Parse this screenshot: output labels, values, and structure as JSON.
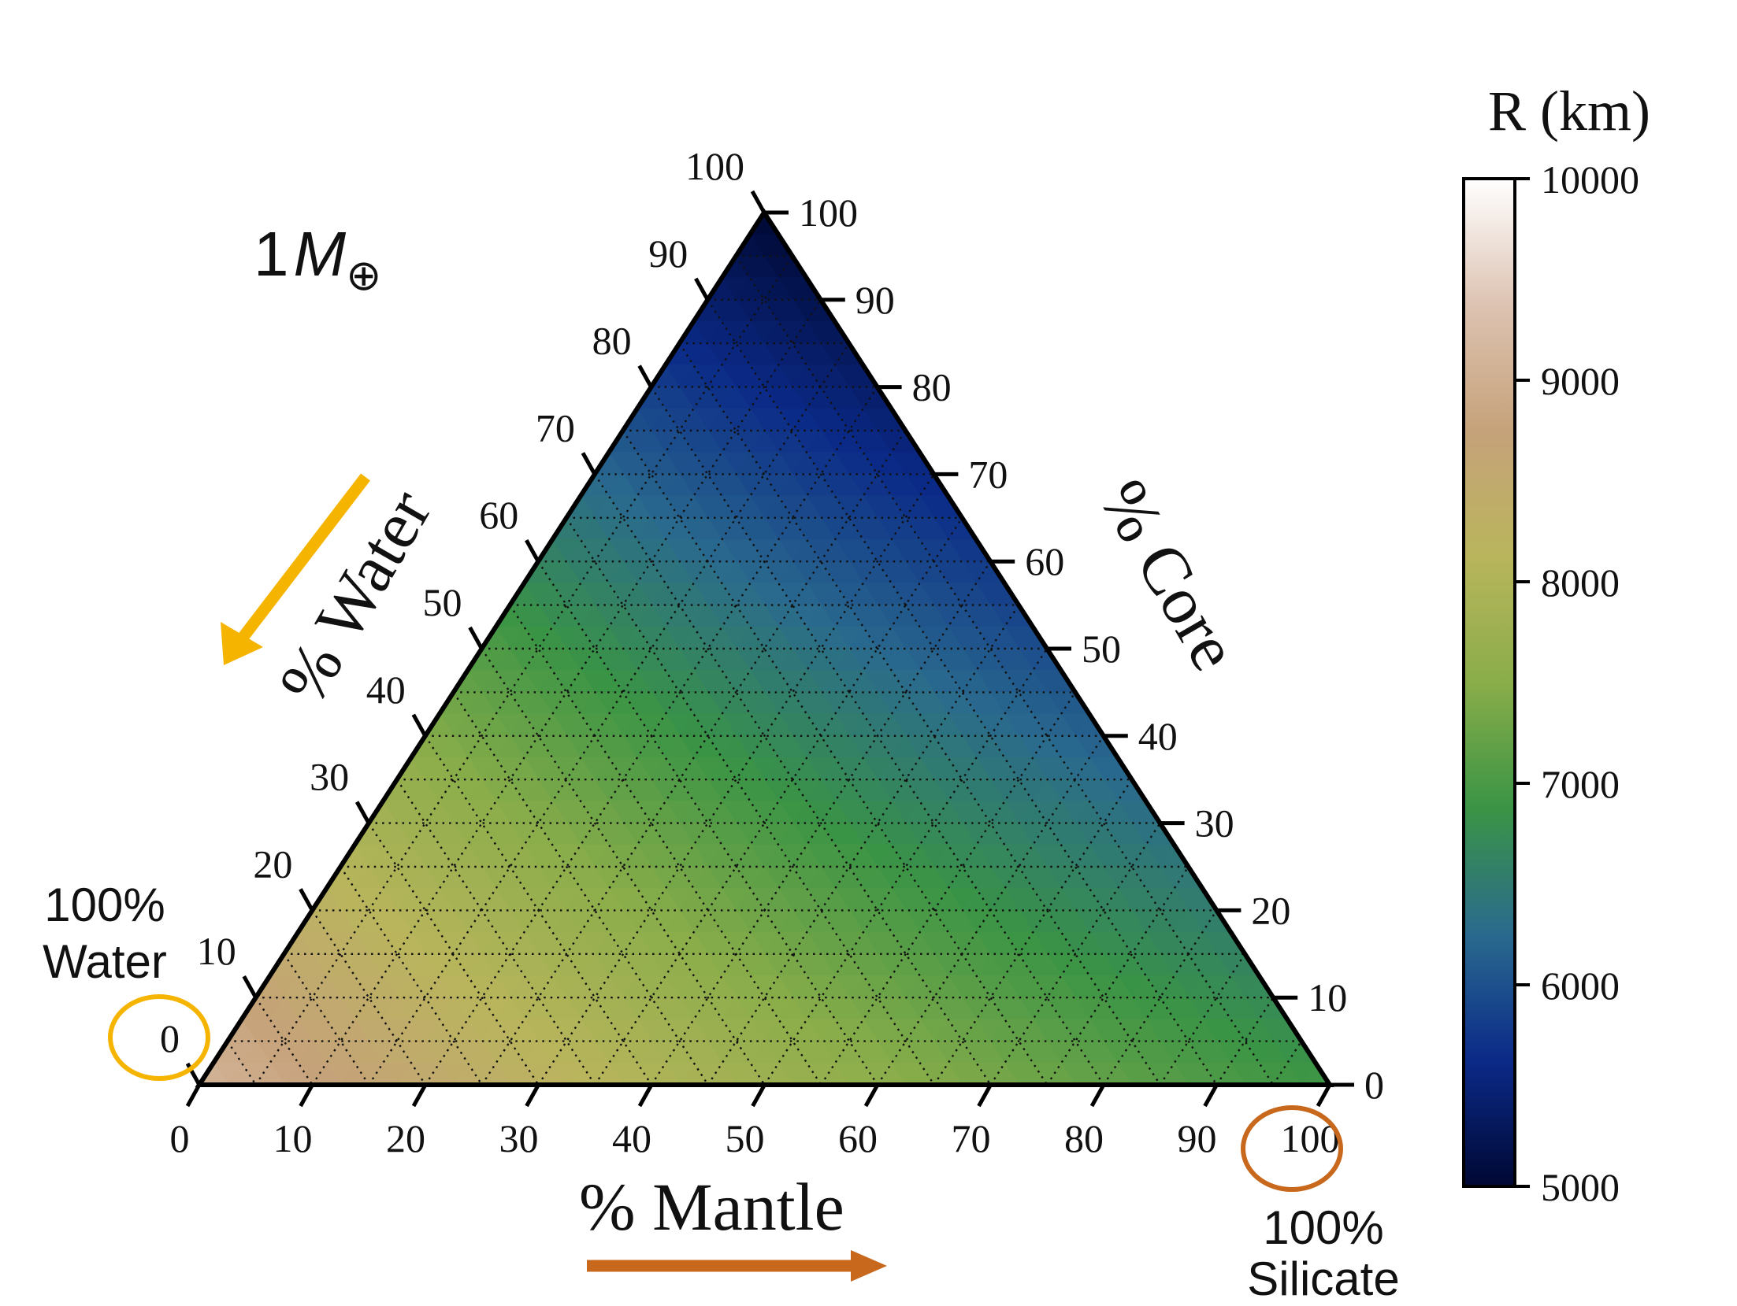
{
  "chart_data": {
    "type": "heatmap",
    "subtype": "ternary",
    "mass_label": "1",
    "mass_symbol": "M",
    "mass_subscript": "⊕",
    "axes": {
      "bottom": {
        "title": "% Mantle",
        "ticks": [
          "0",
          "10",
          "20",
          "30",
          "40",
          "50",
          "60",
          "70",
          "80",
          "90",
          "100"
        ]
      },
      "left": {
        "title": "% Water",
        "ticks": [
          "100",
          "90",
          "80",
          "70",
          "60",
          "50",
          "40",
          "30",
          "20",
          "10",
          "0"
        ]
      },
      "right": {
        "title": "% Core",
        "ticks": [
          "0",
          "10",
          "20",
          "30",
          "40",
          "50",
          "60",
          "70",
          "80",
          "90",
          "100"
        ]
      }
    },
    "colorbar": {
      "title": "R (km)",
      "range": [
        5000,
        10000
      ],
      "ticks": [
        "5000",
        "6000",
        "7000",
        "8000",
        "9000",
        "10000"
      ],
      "colors": [
        "#000833",
        "#0b2a88",
        "#2a6a8e",
        "#3a9445",
        "#8aad4a",
        "#b9b55c",
        "#c6a27a",
        "#ddc3b2",
        "#ffffff"
      ]
    },
    "corner_values_km": {
      "water": 9100,
      "silicate": 6900,
      "core": 5000
    },
    "grid": "dotted, 5% spacing",
    "annotations": [
      {
        "id": "water-corner",
        "line1": "100%",
        "line2": "Water",
        "color": "#f5b400"
      },
      {
        "id": "silicate-corner",
        "line1": "100%",
        "line2": "Silicate",
        "color": "#c8681c"
      }
    ]
  }
}
